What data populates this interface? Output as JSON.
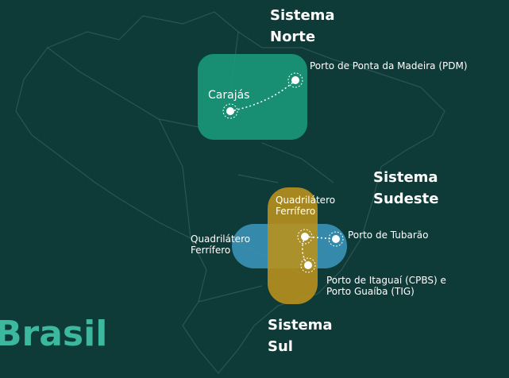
{
  "title": "Brasil",
  "systems": [
    {
      "name": "Sistema Norte",
      "places": [
        "Carajás",
        "Porto de Ponta da Madeira (PDM)"
      ]
    },
    {
      "name": "Sistema Sudeste",
      "places": [
        "Quadrilátero Ferrífero",
        "Porto de Tubarão"
      ]
    },
    {
      "name": "Sistema Sul",
      "places": [
        "Quadrilátero Ferrífero",
        "Porto de Itaguaí (CPBS) e Porto Guaíba (TIG)"
      ]
    }
  ]
}
